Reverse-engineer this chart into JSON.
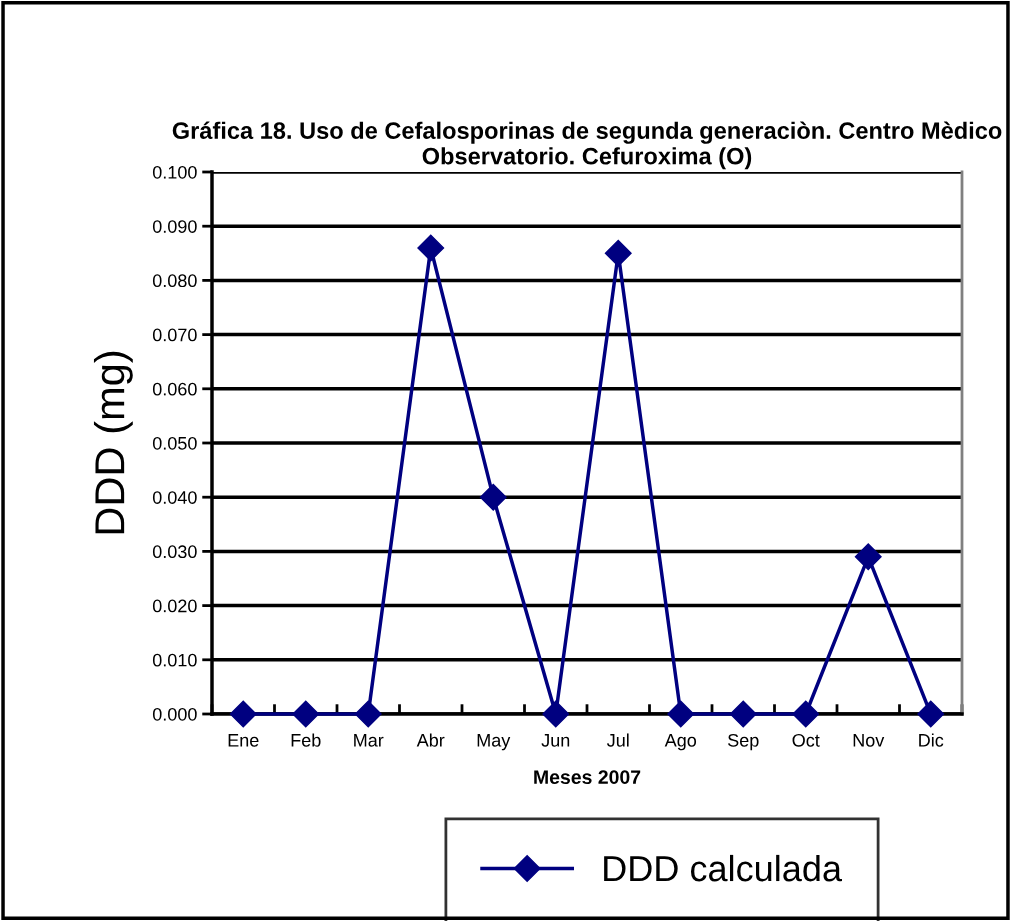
{
  "chart_data": {
    "type": "line",
    "title": "Gráfica 18. Uso de Cefalosporinas de segunda generaciòn. Centro Mèdico Observatorio. Cefuroxima (O)",
    "xlabel": "Meses 2007",
    "ylabel": "DDD (mg)",
    "categories": [
      "Ene",
      "Feb",
      "Mar",
      "Abr",
      "May",
      "Jun",
      "Jul",
      "Ago",
      "Sep",
      "Oct",
      "Nov",
      "Dic"
    ],
    "series": [
      {
        "name": "DDD calculada",
        "color": "#000080",
        "values": [
          0,
          0,
          0,
          0.086,
          0.04,
          0,
          0.085,
          0,
          0,
          0,
          0.029,
          0
        ]
      }
    ],
    "ylim": [
      0,
      0.1
    ],
    "yticks": [
      {
        "value": 0,
        "label": "0.000"
      },
      {
        "value": 0.01,
        "label": "0.010"
      },
      {
        "value": 0.02,
        "label": "0.020"
      },
      {
        "value": 0.03,
        "label": "0.030"
      },
      {
        "value": 0.04,
        "label": "0.040"
      },
      {
        "value": 0.05,
        "label": "0.050"
      },
      {
        "value": 0.06,
        "label": "0.060"
      },
      {
        "value": 0.07,
        "label": "0.070"
      },
      {
        "value": 0.08,
        "label": "0.080"
      },
      {
        "value": 0.09,
        "label": "0.090"
      },
      {
        "value": 0.1,
        "label": "0.100"
      }
    ],
    "grid": "y",
    "legend": "bottom",
    "marker": "diamond",
    "line_style": "solid"
  }
}
